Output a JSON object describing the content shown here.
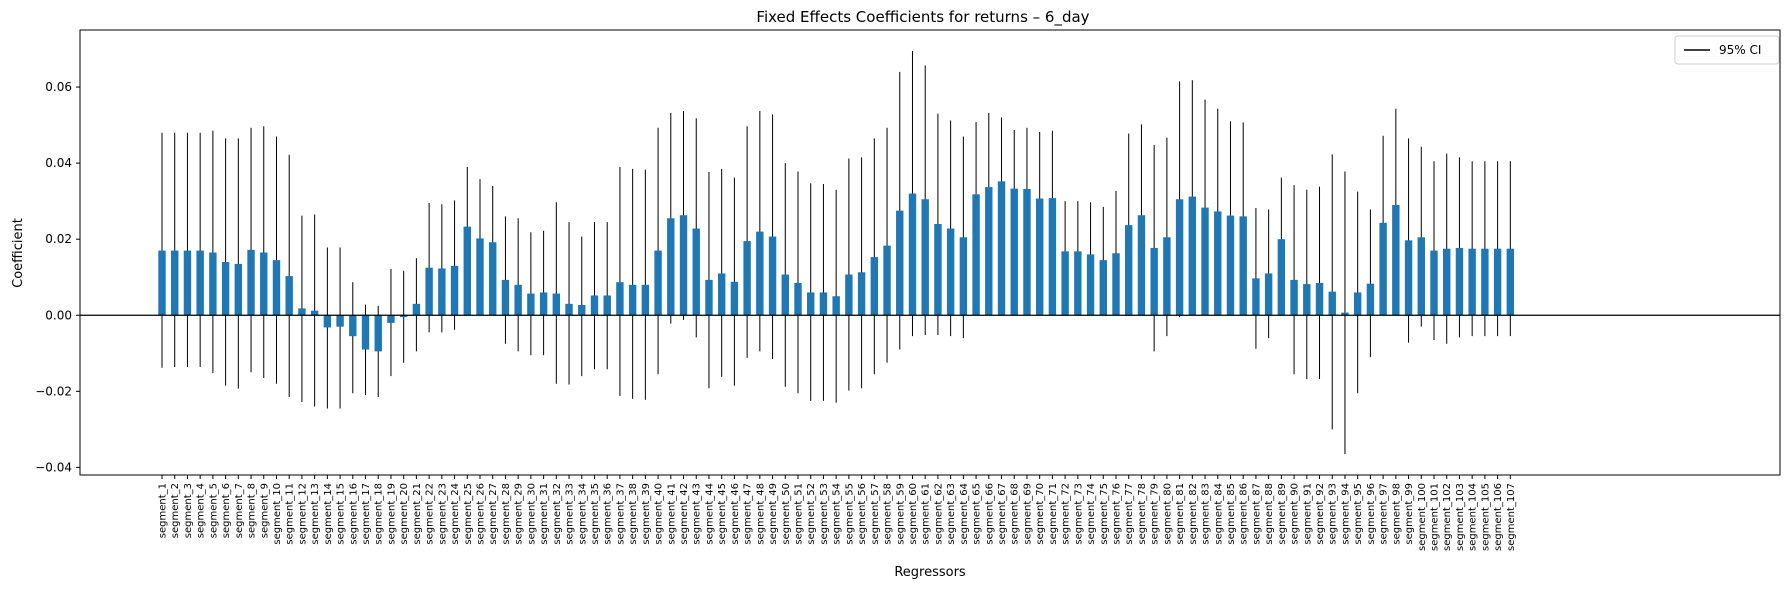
{
  "chart_data": {
    "type": "bar",
    "title": "Fixed Effects Coefficients for returns – 6_day",
    "xlabel": "Regressors",
    "ylabel": "Coefficient",
    "ylim": [
      -0.042,
      0.075
    ],
    "yticks": [
      -0.04,
      -0.02,
      0.0,
      0.02,
      0.04,
      0.06
    ],
    "ytick_labels": [
      "−0.04",
      "−0.02",
      "0.00",
      "0.02",
      "0.04",
      "0.06"
    ],
    "grid": false,
    "legend": {
      "placement": "top-right",
      "entries": [
        "95% CI"
      ]
    },
    "colors": {
      "bar": "#1f77b4",
      "errorbar": "#000000",
      "zero_line": "#000000"
    },
    "categories": [
      "segment_1",
      "segment_2",
      "segment_3",
      "segment_4",
      "segment_5",
      "segment_6",
      "segment_7",
      "segment_8",
      "segment_9",
      "segment_10",
      "segment_11",
      "segment_12",
      "segment_13",
      "segment_14",
      "segment_15",
      "segment_16",
      "segment_17",
      "segment_18",
      "segment_19",
      "segment_20",
      "segment_21",
      "segment_22",
      "segment_23",
      "segment_24",
      "segment_25",
      "segment_26",
      "segment_27",
      "segment_28",
      "segment_29",
      "segment_30",
      "segment_31",
      "segment_32",
      "segment_33",
      "segment_34",
      "segment_35",
      "segment_36",
      "segment_37",
      "segment_38",
      "segment_39",
      "segment_40",
      "segment_41",
      "segment_42",
      "segment_43",
      "segment_44",
      "segment_45",
      "segment_46",
      "segment_47",
      "segment_48",
      "segment_49",
      "segment_50",
      "segment_51",
      "segment_52",
      "segment_53",
      "segment_54",
      "segment_55",
      "segment_56",
      "segment_57",
      "segment_58",
      "segment_59",
      "segment_60",
      "segment_61",
      "segment_62",
      "segment_63",
      "segment_64",
      "segment_65",
      "segment_66",
      "segment_67",
      "segment_68",
      "segment_69",
      "segment_70",
      "segment_71",
      "segment_72",
      "segment_73",
      "segment_74",
      "segment_75",
      "segment_76",
      "segment_77",
      "segment_78",
      "segment_79",
      "segment_80",
      "segment_81",
      "segment_82",
      "segment_83",
      "segment_84",
      "segment_85",
      "segment_86",
      "segment_87",
      "segment_88",
      "segment_89",
      "segment_90",
      "segment_91",
      "segment_92",
      "segment_93",
      "segment_94",
      "segment_95",
      "segment_96",
      "segment_97",
      "segment_98",
      "segment_99",
      "segment_100",
      "segment_101",
      "segment_102",
      "segment_103",
      "segment_104",
      "segment_105",
      "segment_106",
      "segment_107"
    ],
    "values": [
      0.017,
      0.017,
      0.017,
      0.017,
      0.0165,
      0.014,
      0.0135,
      0.0172,
      0.0165,
      0.0145,
      0.0103,
      0.0018,
      0.0012,
      -0.0032,
      -0.003,
      -0.0055,
      -0.009,
      -0.0095,
      -0.002,
      -0.0005,
      0.003,
      0.0125,
      0.0123,
      0.013,
      0.0233,
      0.0202,
      0.0192,
      0.0093,
      0.008,
      0.0057,
      0.006,
      0.0057,
      0.003,
      0.0027,
      0.0052,
      0.0052,
      0.0087,
      0.008,
      0.008,
      0.017,
      0.0255,
      0.0263,
      0.0228,
      0.0093,
      0.011,
      0.0088,
      0.0195,
      0.022,
      0.0207,
      0.0107,
      0.0085,
      0.006,
      0.006,
      0.005,
      0.0107,
      0.0113,
      0.0153,
      0.0183,
      0.0275,
      0.032,
      0.0305,
      0.024,
      0.0228,
      0.0205,
      0.0318,
      0.0337,
      0.0352,
      0.0333,
      0.0332,
      0.0307,
      0.0308,
      0.0168,
      0.0168,
      0.016,
      0.0145,
      0.0163,
      0.0237,
      0.0263,
      0.0177,
      0.0205,
      0.0305,
      0.0312,
      0.0283,
      0.0273,
      0.0262,
      0.026,
      0.0097,
      0.011,
      0.02,
      0.0093,
      0.0082,
      0.0085,
      0.0062,
      0.0007,
      0.006,
      0.0083,
      0.0243,
      0.029,
      0.0197,
      0.0205,
      0.017,
      0.0175,
      0.0177,
      0.0175,
      0.0175,
      0.0175,
      0.0175
    ],
    "ci_lower": [
      -0.0138,
      -0.0136,
      -0.0136,
      -0.0136,
      -0.0152,
      -0.0185,
      -0.0193,
      -0.015,
      -0.0165,
      -0.018,
      -0.0215,
      -0.0228,
      -0.024,
      -0.0245,
      -0.0245,
      -0.0205,
      -0.021,
      -0.0215,
      -0.016,
      -0.0125,
      -0.0095,
      -0.0045,
      -0.0045,
      -0.0038,
      0.0075,
      0.0045,
      0.004,
      -0.0075,
      -0.0095,
      -0.0105,
      -0.0105,
      -0.018,
      -0.0182,
      -0.016,
      -0.0142,
      -0.0142,
      -0.0212,
      -0.022,
      -0.0222,
      -0.0155,
      -0.0022,
      -0.0012,
      -0.0058,
      -0.0192,
      -0.0162,
      -0.0185,
      -0.0112,
      -0.0095,
      -0.0115,
      -0.0188,
      -0.0205,
      -0.0225,
      -0.0225,
      -0.023,
      -0.0198,
      -0.0192,
      -0.0155,
      -0.0125,
      -0.009,
      -0.0055,
      -0.0052,
      -0.0052,
      -0.0055,
      -0.006,
      0.0125,
      0.013,
      0.0182,
      0.018,
      0.017,
      0.0128,
      0.0128,
      0.0035,
      0.0035,
      0.0025,
      0.0005,
      0.0005,
      -0.0002,
      0.0022,
      -0.0095,
      -0.0055,
      -0.0005,
      0.0002,
      0.0002,
      0.0002,
      0.0002,
      0.0002,
      -0.0088,
      -0.006,
      0.0035,
      -0.0155,
      -0.0168,
      -0.0168,
      -0.03,
      -0.0365,
      -0.0205,
      -0.011,
      0.002,
      0.0035,
      -0.0072,
      -0.003,
      -0.0065,
      -0.0075,
      -0.0058,
      -0.0055,
      -0.0055,
      -0.0055,
      -0.0055
    ],
    "ci_upper": [
      0.048,
      0.048,
      0.048,
      0.048,
      0.0485,
      0.0465,
      0.0465,
      0.0493,
      0.0497,
      0.047,
      0.0422,
      0.0262,
      0.0265,
      0.0178,
      0.0178,
      0.0087,
      0.0028,
      0.0025,
      0.0122,
      0.0117,
      0.015,
      0.0295,
      0.0292,
      0.0302,
      0.039,
      0.0358,
      0.034,
      0.026,
      0.0255,
      0.0218,
      0.0222,
      0.0297,
      0.0245,
      0.0207,
      0.0245,
      0.0245,
      0.039,
      0.0385,
      0.0383,
      0.0493,
      0.0532,
      0.0537,
      0.0518,
      0.0377,
      0.0385,
      0.0362,
      0.0497,
      0.0537,
      0.0528,
      0.04,
      0.0378,
      0.0347,
      0.0345,
      0.033,
      0.0412,
      0.0415,
      0.0465,
      0.0493,
      0.064,
      0.0695,
      0.0657,
      0.053,
      0.0512,
      0.047,
      0.0508,
      0.0532,
      0.052,
      0.0487,
      0.0493,
      0.0482,
      0.0485,
      0.03,
      0.03,
      0.0297,
      0.0285,
      0.0327,
      0.0478,
      0.0502,
      0.0448,
      0.0467,
      0.0615,
      0.0618,
      0.0567,
      0.0543,
      0.051,
      0.0507,
      0.0282,
      0.0278,
      0.0362,
      0.0342,
      0.033,
      0.0338,
      0.0423,
      0.0378,
      0.0325,
      0.0278,
      0.0472,
      0.0543,
      0.0465,
      0.0443,
      0.0405,
      0.0425,
      0.0415,
      0.0405,
      0.0405,
      0.0405,
      0.0405
    ]
  }
}
